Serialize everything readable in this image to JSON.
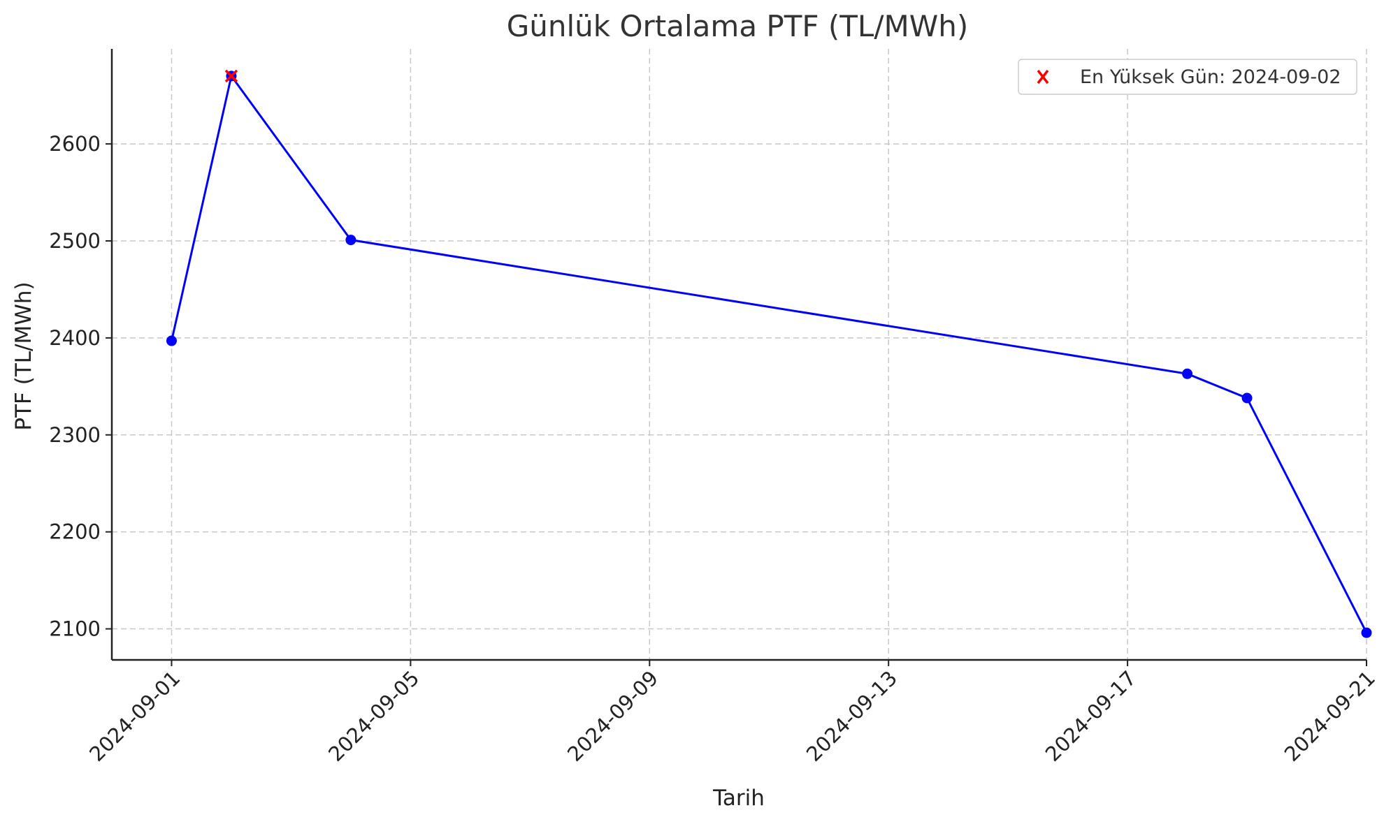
{
  "chart_data": {
    "type": "line",
    "title": "Günlük Ortalama PTF (TL/MWh)",
    "xlabel": "Tarih",
    "ylabel": "PTF (TL/MWh)",
    "x_ticks": [
      "2024-09-01",
      "2024-09-05",
      "2024-09-09",
      "2024-09-13",
      "2024-09-17",
      "2024-09-21"
    ],
    "y_ticks": [
      2100,
      2200,
      2300,
      2400,
      2500,
      2600
    ],
    "xlim": [
      "2024-08-31",
      "2024-09-21"
    ],
    "ylim": [
      2068,
      2698
    ],
    "grid": true,
    "legend_position": "top-right",
    "colors": {
      "line": "#0000ff",
      "highlight": "#ff0000"
    },
    "series": [
      {
        "x": [
          "2024-09-01",
          "2024-09-02",
          "2024-09-04",
          "2024-09-18",
          "2024-09-19",
          "2024-09-21"
        ],
        "y": [
          2397,
          2670,
          2501,
          2363,
          2338,
          2096
        ]
      }
    ],
    "highlight": {
      "name": "En Yüksek Gün: 2024-09-02",
      "x": "2024-09-02",
      "y": 2670,
      "marker": "x"
    }
  }
}
